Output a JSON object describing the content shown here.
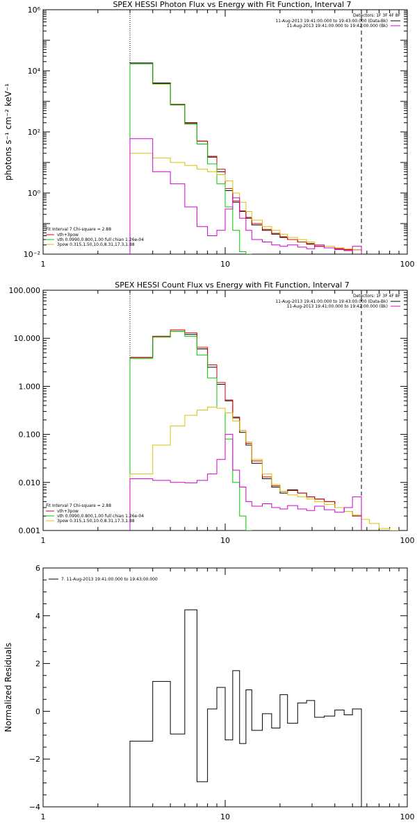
{
  "chart_data": [
    {
      "type": "line",
      "title": "SPEX HESSI Photon Flux vs Energy with Fit Function, Interval 7",
      "ylabel": "photons s⁻¹ cm⁻² keV⁻¹",
      "xlabel": "",
      "x_scale": "log",
      "y_scale": "log",
      "xlim": [
        1,
        100
      ],
      "ylim": [
        0.01,
        1000000
      ],
      "x_ticks": [
        1,
        10,
        100
      ],
      "x_tick_labels": [
        "1",
        "10",
        "100"
      ],
      "y_ticks": [
        0.01,
        1,
        100,
        10000,
        1000000
      ],
      "y_tick_labels": [
        "10⁻²",
        "10⁰",
        "10²",
        "10⁴",
        "10⁶"
      ],
      "fit_range_lines": [
        3.0,
        56.0
      ],
      "legend_top_right": {
        "header": "Detectors: 1F 3F 4F 8F",
        "entries": [
          {
            "label": "11-Aug-2013 19:41:00.000 to 19:43:00.000 (Data-Bk)",
            "color": "#000000"
          },
          {
            "label": "11-Aug-2013 19:41:00.000 to 19:42:00.000 (Bk)",
            "color": "#d000d0"
          }
        ]
      },
      "legend_bottom_left": {
        "header": "Fit Interval  7    Chi-square = 2.88",
        "entries": [
          {
            "label": "vth+3pow",
            "color": "#e00000"
          },
          {
            "label": "vth 0.0990,0.800,1.00   full chian 1.26e-04",
            "color": "#00c800"
          },
          {
            "label": "3pow 0.315,1.50,10.0,8.31,17.3,1.88",
            "color": "#d8c000"
          }
        ]
      },
      "bin_edges": [
        3,
        4,
        5,
        6,
        7,
        8,
        9,
        10,
        11,
        12,
        13,
        14,
        16,
        18,
        20,
        22,
        25,
        28,
        31,
        35,
        40,
        45,
        50,
        56
      ],
      "series": [
        {
          "name": "Data-Bk",
          "color": "#000000",
          "values": [
            18000,
            4000,
            800,
            200,
            50,
            15,
            5,
            1.2,
            0.5,
            0.25,
            0.15,
            0.09,
            0.06,
            0.045,
            0.035,
            0.03,
            0.025,
            0.022,
            0.018,
            0.016,
            0.015,
            0.014,
            0.014
          ]
        },
        {
          "name": "vth+3pow",
          "color": "#e00000",
          "values": [
            17000,
            3800,
            780,
            190,
            50,
            16,
            6,
            1.4,
            0.55,
            0.26,
            0.16,
            0.1,
            0.065,
            0.048,
            0.037,
            0.03,
            0.025,
            0.021,
            0.018,
            0.016,
            0.015,
            0.014,
            0.014
          ]
        },
        {
          "name": "vth",
          "color": "#00c800",
          "values": [
            17000,
            3700,
            760,
            180,
            40,
            9,
            2,
            0.35,
            0.06,
            0.012,
            0.004
          ]
        },
        {
          "name": "3pow",
          "color": "#d8c000",
          "values": [
            20,
            14,
            10,
            8,
            6,
            5,
            4,
            2.5,
            1,
            0.5,
            0.25,
            0.13,
            0.08,
            0.06,
            0.045,
            0.035,
            0.03,
            0.025,
            0.02,
            0.018,
            0.016,
            0.015,
            0.014
          ]
        },
        {
          "name": "Bk",
          "color": "#d000d0",
          "values": [
            60,
            5,
            2,
            0.35,
            0.08,
            0.04,
            0.06,
            0.3,
            0.7,
            0.15,
            0.06,
            0.03,
            0.025,
            0.02,
            0.018,
            0.02,
            0.017,
            0.015,
            0.02,
            0.016,
            0.014,
            0.013,
            0.018
          ]
        }
      ]
    },
    {
      "type": "line",
      "title": "SPEX HESSI Count Flux vs Energy with Fit Function, Interval 7",
      "ylabel": "",
      "xlabel": "",
      "x_scale": "log",
      "y_scale": "log",
      "xlim": [
        1,
        100
      ],
      "ylim": [
        0.001,
        100
      ],
      "x_ticks": [
        1,
        10,
        100
      ],
      "x_tick_labels": [
        "1",
        "10",
        "100"
      ],
      "y_ticks": [
        0.001,
        0.01,
        0.1,
        1,
        10,
        100
      ],
      "y_tick_labels": [
        "0.001",
        "0.010",
        "0.100",
        "1.000",
        "10.000",
        "100.000"
      ],
      "fit_range_lines": [
        3.0,
        56.0
      ],
      "legend_top_right": {
        "header": "Detectors: 1F 3F 4F 8F",
        "entries": [
          {
            "label": "11-Aug-2013 19:41:00.000 to 19:43:00.000 (Data-Bk)",
            "color": "#000000"
          },
          {
            "label": "11-Aug-2013 19:41:00.000 to 19:42:00.000 (Bk)",
            "color": "#d000d0"
          }
        ]
      },
      "legend_bottom_left": {
        "header": "Fit Interval  7    Chi-square = 2.88",
        "entries": [
          {
            "label": "vth+3pow",
            "color": "#e00000"
          },
          {
            "label": "vth 0.0990,0.800,1.00   full chian 1.26e-04",
            "color": "#00c800"
          },
          {
            "label": "3pow 0.315,1.50,10.0,8.31,17.3,1.88",
            "color": "#d8c000"
          }
        ]
      },
      "bin_edges": [
        3,
        4,
        5,
        6,
        7,
        8,
        9,
        10,
        11,
        12,
        13,
        14,
        16,
        18,
        20,
        22,
        25,
        28,
        31,
        35,
        40,
        45,
        50,
        56,
        62,
        70,
        80,
        90
      ],
      "series": [
        {
          "name": "Data-Bk",
          "color": "#000000",
          "values": [
            4,
            11,
            14,
            12,
            6,
            2.5,
            1.1,
            0.5,
            0.22,
            0.11,
            0.06,
            0.025,
            0.012,
            0.008,
            0.006,
            0.007,
            0.006,
            0.005,
            0.0045,
            0.004,
            0.003,
            0.0025,
            0.002
          ]
        },
        {
          "name": "vth+3pow",
          "color": "#e00000",
          "values": [
            4,
            11,
            15,
            13,
            6.5,
            2.8,
            1.2,
            0.52,
            0.23,
            0.12,
            0.065,
            0.028,
            0.013,
            0.0085,
            0.0065,
            0.0068,
            0.006,
            0.005,
            0.0045,
            0.004,
            0.003,
            0.0025,
            0.002
          ]
        },
        {
          "name": "vth",
          "color": "#00c800",
          "values": [
            3.8,
            10.5,
            14,
            11,
            4.5,
            1.5,
            0.35,
            0.08,
            0.01,
            0.002,
            0.0005
          ]
        },
        {
          "name": "3pow",
          "color": "#d8c000",
          "values": [
            0.015,
            0.06,
            0.15,
            0.25,
            0.32,
            0.37,
            0.35,
            0.28,
            0.19,
            0.12,
            0.07,
            0.03,
            0.015,
            0.009,
            0.0065,
            0.0055,
            0.005,
            0.0045,
            0.004,
            0.0035,
            0.003,
            0.0025,
            0.0021,
            0.0017,
            0.0014,
            0.0011,
            0.001
          ]
        },
        {
          "name": "Bk",
          "color": "#d000d0",
          "values": [
            0.012,
            0.011,
            0.01,
            0.0098,
            0.011,
            0.015,
            0.03,
            0.1,
            0.018,
            0.008,
            0.004,
            0.0032,
            0.0036,
            0.003,
            0.0028,
            0.0033,
            0.0028,
            0.0026,
            0.0032,
            0.0027,
            0.0024,
            0.003,
            0.005
          ]
        }
      ]
    },
    {
      "type": "line",
      "title": "",
      "ylabel": "Normalized Residuals",
      "xlabel": "",
      "x_scale": "log",
      "y_scale": "linear",
      "xlim": [
        1,
        100
      ],
      "ylim": [
        -4,
        6
      ],
      "x_ticks": [
        1,
        10,
        100
      ],
      "x_tick_labels": [
        "1",
        "10",
        "100"
      ],
      "y_ticks": [
        -4,
        -2,
        0,
        2,
        4,
        6
      ],
      "y_tick_labels": [
        "−4",
        "−2",
        "0",
        "2",
        "4",
        "6"
      ],
      "legend": {
        "label": "7. 11-Aug-2013 19:41:00.000 to 19:43:00.000",
        "color": "#000000"
      },
      "bin_edges": [
        3,
        4,
        5,
        6,
        7,
        8,
        9,
        10,
        11,
        12,
        13,
        14,
        16,
        18,
        20,
        22,
        25,
        28,
        31,
        35,
        40,
        45,
        50,
        56
      ],
      "series": [
        {
          "name": "7. 11-Aug-2013 19:41:00.000 to 19:43:00.000",
          "color": "#000000",
          "values": [
            -1.25,
            1.25,
            -0.95,
            4.25,
            -2.95,
            0.1,
            1.0,
            -1.2,
            1.7,
            -1.35,
            0.9,
            -0.8,
            -0.1,
            -0.7,
            0.7,
            -0.5,
            0.35,
            0.45,
            -0.25,
            -0.2,
            0.05,
            -0.15,
            0.1
          ]
        }
      ]
    }
  ]
}
